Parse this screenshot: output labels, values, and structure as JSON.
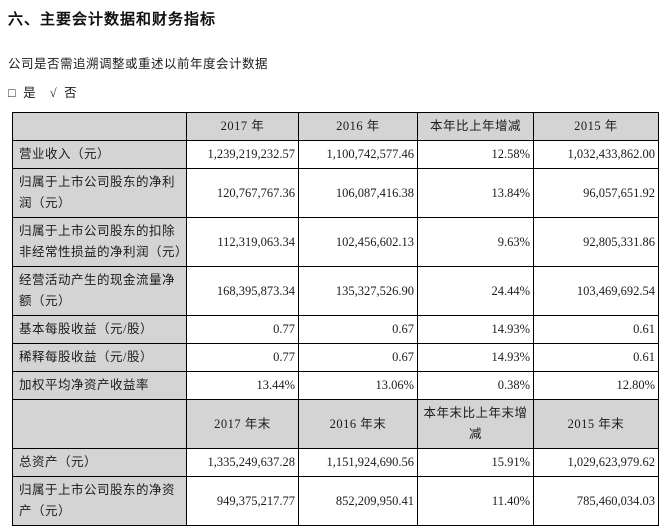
{
  "page": {
    "title": "六、主要会计数据和财务指标",
    "question": "公司是否需追溯调整或重述以前年度会计数据",
    "options": {
      "yes_box": "□",
      "yes_label": "是",
      "no_check": "√",
      "no_label": "否"
    }
  },
  "colors": {
    "header_bg": "#d4d4d4",
    "label_bg": "#d4d4d4",
    "border": "#000000",
    "text": "#1c1c1c"
  },
  "table": {
    "rows": [
      {
        "type": "header",
        "cells": [
          "",
          "2017 年",
          "2016 年",
          "本年比上年增减",
          "2015 年"
        ]
      },
      {
        "type": "data",
        "label": "营业收入（元）",
        "values": [
          "1,239,219,232.57",
          "1,100,742,577.46",
          "12.58%",
          "1,032,433,862.00"
        ]
      },
      {
        "type": "data",
        "label": "归属于上市公司股东的净利润（元）",
        "values": [
          "120,767,767.36",
          "106,087,416.38",
          "13.84%",
          "96,057,651.92"
        ]
      },
      {
        "type": "data",
        "label": "归属于上市公司股东的扣除非经常性损益的净利润（元）",
        "values": [
          "112,319,063.34",
          "102,456,602.13",
          "9.63%",
          "92,805,331.86"
        ]
      },
      {
        "type": "data",
        "label": "经营活动产生的现金流量净额（元）",
        "values": [
          "168,395,873.34",
          "135,327,526.90",
          "24.44%",
          "103,469,692.54"
        ]
      },
      {
        "type": "data",
        "label": "基本每股收益（元/股）",
        "values": [
          "0.77",
          "0.67",
          "14.93%",
          "0.61"
        ]
      },
      {
        "type": "data",
        "label": "稀释每股收益（元/股）",
        "values": [
          "0.77",
          "0.67",
          "14.93%",
          "0.61"
        ]
      },
      {
        "type": "data",
        "label": "加权平均净资产收益率",
        "values": [
          "13.44%",
          "13.06%",
          "0.38%",
          "12.80%"
        ]
      },
      {
        "type": "header",
        "cells": [
          "",
          "2017 年末",
          "2016 年末",
          "本年末比上年末增减",
          "2015 年末"
        ]
      },
      {
        "type": "data",
        "label": "总资产（元）",
        "values": [
          "1,335,249,637.28",
          "1,151,924,690.56",
          "15.91%",
          "1,029,623,979.62"
        ]
      },
      {
        "type": "data",
        "label": "归属于上市公司股东的净资产（元）",
        "values": [
          "949,375,217.77",
          "852,209,950.41",
          "11.40%",
          "785,460,034.03"
        ]
      }
    ]
  }
}
